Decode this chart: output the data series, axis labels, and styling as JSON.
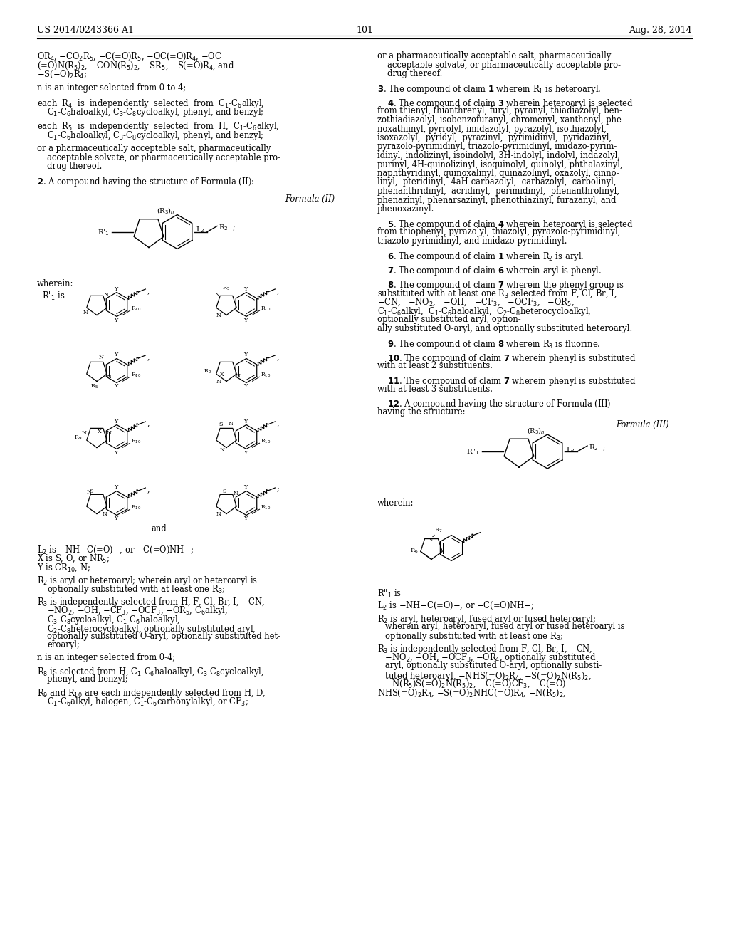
{
  "page_number": "101",
  "patent_number": "US 2014/0243366 A1",
  "patent_date": "Aug. 28, 2014",
  "background_color": "#ffffff",
  "text_color": "#000000"
}
